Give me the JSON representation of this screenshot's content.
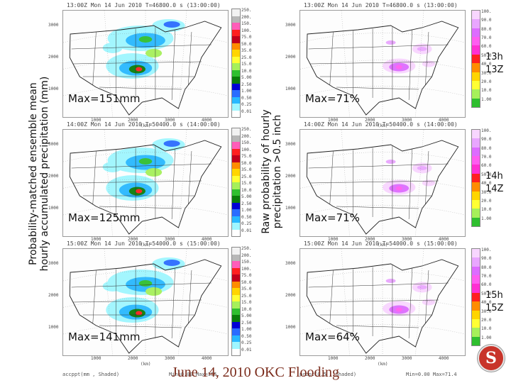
{
  "left_axis_title": [
    "Probability-matched ensemble mean",
    "hourly accumulated precipitation (mm)"
  ],
  "middle_axis_title": [
    "Raw probability of hourly",
    "precipitation >0.5 inch"
  ],
  "rows": [
    {
      "time": [
        "13h",
        "13Z"
      ],
      "left_header": "13:00Z Mon 14 Jun 2010   T=46800.0 s (13:00:00)",
      "right_header": "13:00Z Mon 14 Jun 2010   T=46800.0 s (13:00:00)",
      "left_max": "Max=151mm",
      "right_max": "Max=71%"
    },
    {
      "time": [
        "14h",
        "14Z"
      ],
      "left_header": "14:00Z Mon 14 Jun 2010   T=50400.0 s (14:00:00)",
      "right_header": "14:00Z Mon 14 Jun 2010   T=50400.0 s (14:00:00)",
      "left_max": "Max=125mm",
      "right_max": "Max=71%"
    },
    {
      "time": [
        "15h",
        "15Z"
      ],
      "left_header": "15:00Z Mon 14 Jun 2010   T=54000.0 s (15:00:00)",
      "right_header": "15:00Z Mon 14 Jun 2010   T=54000.0 s (15:00:00)",
      "left_max": "Max=141mm",
      "right_max": "Max=64%"
    }
  ],
  "left_footer": "accppt(mm , Shaded)",
  "left_footer_min": "Min=0.00 Max=155.",
  "right_footer": "prbpt(0.5 , Shaded)",
  "right_footer_min": "Min=0.00 Max=71.4",
  "left_colorbar_ticks": [
    "250.",
    "200.",
    "150.",
    "100.",
    "75.0",
    "50.0",
    "35.0",
    "25.0",
    "15.0",
    "10.0",
    "5.00",
    "2.50",
    "1.00",
    "0.50",
    "0.25",
    "0.01"
  ],
  "right_colorbar_ticks": [
    "100.",
    "90.0",
    "80.0",
    "70.0",
    "60.0",
    "50.0",
    "40.0",
    "30.0",
    "20.0",
    "10.0",
    "1.00"
  ],
  "left_colors": [
    "#f2f2f2",
    "#b7b7b7",
    "#ff5db9",
    "#ff1f1f",
    "#c2001b",
    "#ff8c00",
    "#ffd500",
    "#ffff33",
    "#a6f05a",
    "#2fbf2f",
    "#0a7d0a",
    "#0000d6",
    "#2b6cff",
    "#29b8ff",
    "#9ff6ff",
    "#ffffff"
  ],
  "right_colors": [
    "#f8d6ff",
    "#e9a6ff",
    "#dd6cff",
    "#ff5cf0",
    "#ff2fd2",
    "#ff1f1f",
    "#ff8c00",
    "#ffd500",
    "#ffff33",
    "#a6f05a",
    "#2fbf2f"
  ],
  "x_ticks": [
    "1000",
    "2000",
    "3000",
    "4000"
  ],
  "y_ticks": [
    "3000",
    "2000",
    "1000"
  ],
  "axis_unit": "(km)",
  "footer_title": "June 14, 2010 OKC Flooding",
  "logo_letter": "S"
}
